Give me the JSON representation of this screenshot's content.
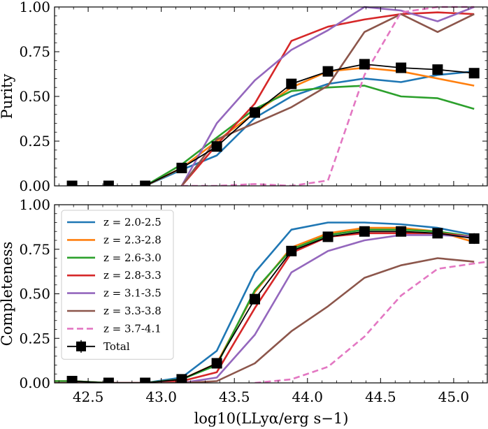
{
  "chart_data": [
    {
      "type": "line",
      "ylabel": "Purity",
      "xlim": [
        42.27,
        45.23
      ],
      "ylim": [
        0,
        1
      ],
      "xticks": [
        "42.5",
        "43.0",
        "43.5",
        "44.0",
        "44.5",
        "45.0"
      ],
      "xtick_values": [
        42.5,
        43.0,
        43.5,
        44.0,
        44.5,
        45.0
      ],
      "yticks": [
        "0.00",
        "0.25",
        "0.50",
        "0.75",
        "1.00"
      ],
      "ytick_values": [
        0,
        0.25,
        0.5,
        0.75,
        1.0
      ],
      "grid": false,
      "series": [
        {
          "color": "#1f77b4",
          "dashed": false,
          "x": [
            42.89,
            43.14,
            43.38,
            43.64,
            43.89,
            44.14,
            44.39,
            44.64,
            44.89,
            45.14
          ],
          "y": [
            0.0,
            0.09,
            0.17,
            0.38,
            0.5,
            0.57,
            0.6,
            0.58,
            0.62,
            0.64
          ]
        },
        {
          "color": "#ff7f0e",
          "dashed": false,
          "x": [
            42.89,
            43.14,
            43.38,
            43.64,
            43.89,
            44.14,
            44.39,
            44.64,
            44.89,
            45.14
          ],
          "y": [
            0.0,
            0.1,
            0.25,
            0.41,
            0.55,
            0.64,
            0.66,
            0.64,
            0.6,
            0.56
          ]
        },
        {
          "color": "#2ca02c",
          "dashed": false,
          "x": [
            42.89,
            43.14,
            43.38,
            43.64,
            43.89,
            44.14,
            44.39,
            44.64,
            44.89,
            45.14
          ],
          "y": [
            0.0,
            0.12,
            0.27,
            0.43,
            0.53,
            0.55,
            0.56,
            0.5,
            0.49,
            0.43
          ]
        },
        {
          "color": "#d62728",
          "dashed": false,
          "x": [
            43.14,
            43.38,
            43.64,
            43.89,
            44.14,
            44.39,
            44.64,
            44.89,
            45.14
          ],
          "y": [
            0.0,
            0.23,
            0.46,
            0.81,
            0.89,
            0.93,
            0.96,
            0.97,
            0.96
          ]
        },
        {
          "color": "#9467bd",
          "dashed": false,
          "x": [
            43.14,
            43.38,
            43.64,
            43.89,
            44.14,
            44.39,
            44.64,
            44.89,
            45.14
          ],
          "y": [
            0.0,
            0.35,
            0.59,
            0.76,
            0.87,
            1.0,
            0.98,
            0.92,
            1.0
          ]
        },
        {
          "color": "#8c564b",
          "dashed": false,
          "x": [
            43.14,
            43.38,
            43.64,
            43.89,
            44.14,
            44.39,
            44.64,
            44.89,
            45.14
          ],
          "y": [
            0.0,
            0.26,
            0.35,
            0.44,
            0.56,
            0.86,
            0.96,
            0.86,
            0.96
          ]
        },
        {
          "color": "#e377c2",
          "dashed": true,
          "x": [
            43.14,
            43.38,
            43.64,
            43.89,
            44.14,
            44.39,
            44.64,
            44.89,
            45.14
          ],
          "y": [
            0.0,
            0.0,
            0.01,
            0.0,
            0.03,
            0.62,
            0.97,
            1.0,
            1.0
          ]
        }
      ],
      "total": {
        "x": [
          42.39,
          42.64,
          42.89,
          43.14,
          43.38,
          43.64,
          43.89,
          44.14,
          44.39,
          44.64,
          44.89,
          45.14
        ],
        "y": [
          0.0,
          0.0,
          0.0,
          0.1,
          0.22,
          0.41,
          0.57,
          0.64,
          0.68,
          0.66,
          0.65,
          0.63
        ]
      }
    },
    {
      "type": "line",
      "ylabel": "Completeness",
      "xlabel": "log10(LLyα/erg s−1)",
      "xlim": [
        42.27,
        45.23
      ],
      "ylim": [
        0,
        1
      ],
      "xticks": [
        "42.5",
        "43.0",
        "43.5",
        "44.0",
        "44.5",
        "45.0"
      ],
      "xtick_values": [
        42.5,
        43.0,
        43.5,
        44.0,
        44.5,
        45.0
      ],
      "yticks": [
        "0.00",
        "0.25",
        "0.50",
        "0.75",
        "1.00"
      ],
      "ytick_values": [
        0,
        0.25,
        0.5,
        0.75,
        1.0
      ],
      "grid": false,
      "legend_position": "top-left",
      "series": [
        {
          "name": "z = 2.0-2.5",
          "color": "#1f77b4",
          "dashed": false,
          "x": [
            42.27,
            42.39,
            42.64,
            42.89,
            43.14,
            43.38,
            43.64,
            43.89,
            44.14,
            44.39,
            44.64,
            44.89,
            45.14
          ],
          "y": [
            0.01,
            0.01,
            0.0,
            0.0,
            0.03,
            0.18,
            0.62,
            0.86,
            0.9,
            0.9,
            0.89,
            0.87,
            0.83
          ]
        },
        {
          "name": "z = 2.3-2.8",
          "color": "#ff7f0e",
          "dashed": false,
          "x": [
            42.27,
            42.39,
            42.64,
            42.89,
            43.14,
            43.38,
            43.64,
            43.89,
            44.14,
            44.39,
            44.64,
            44.89,
            45.14
          ],
          "y": [
            0.01,
            0.01,
            0.0,
            0.0,
            0.02,
            0.11,
            0.51,
            0.76,
            0.84,
            0.87,
            0.87,
            0.85,
            0.79
          ]
        },
        {
          "name": "z = 2.6-3.0",
          "color": "#2ca02c",
          "dashed": false,
          "x": [
            42.27,
            42.39,
            42.64,
            42.89,
            43.14,
            43.38,
            43.64,
            43.89,
            44.14,
            44.39,
            44.64,
            44.89,
            45.14
          ],
          "y": [
            0.01,
            0.01,
            0.0,
            0.0,
            0.02,
            0.1,
            0.52,
            0.75,
            0.83,
            0.86,
            0.86,
            0.85,
            0.82
          ]
        },
        {
          "name": "z = 2.8-3.3",
          "color": "#d62728",
          "dashed": false,
          "x": [
            42.27,
            42.39,
            42.64,
            42.89,
            43.14,
            43.38,
            43.64,
            43.89,
            44.14,
            44.39,
            44.64,
            44.89,
            45.14
          ],
          "y": [
            0.0,
            0.0,
            0.0,
            0.0,
            0.01,
            0.06,
            0.42,
            0.73,
            0.82,
            0.84,
            0.84,
            0.84,
            0.82
          ]
        },
        {
          "name": "z = 3.1-3.5",
          "color": "#9467bd",
          "dashed": false,
          "x": [
            42.27,
            42.39,
            42.64,
            42.89,
            43.14,
            43.38,
            43.64,
            43.89,
            44.14,
            44.39,
            44.64,
            44.89,
            45.14
          ],
          "y": [
            0.0,
            0.0,
            0.0,
            0.0,
            0.0,
            0.03,
            0.27,
            0.62,
            0.74,
            0.8,
            0.83,
            0.83,
            0.82
          ]
        },
        {
          "name": "z = 3.3-3.8",
          "color": "#8c564b",
          "dashed": false,
          "x": [
            42.27,
            42.39,
            42.64,
            42.89,
            43.14,
            43.38,
            43.64,
            43.89,
            44.14,
            44.39,
            44.64,
            44.89,
            45.14
          ],
          "y": [
            0.0,
            0.0,
            0.0,
            0.0,
            0.0,
            0.01,
            0.11,
            0.29,
            0.43,
            0.59,
            0.66,
            0.7,
            0.68
          ]
        },
        {
          "name": "z = 3.7-4.1",
          "color": "#e377c2",
          "dashed": true,
          "x": [
            43.64,
            43.89,
            44.14,
            44.39,
            44.64,
            44.89,
            45.14,
            45.23
          ],
          "y": [
            0.0,
            0.02,
            0.09,
            0.26,
            0.49,
            0.64,
            0.67,
            0.68
          ]
        }
      ],
      "total": {
        "name": "Total",
        "x": [
          42.39,
          42.64,
          42.89,
          43.14,
          43.38,
          43.64,
          43.89,
          44.14,
          44.39,
          44.64,
          44.89,
          45.14
        ],
        "y": [
          0.01,
          0.0,
          0.0,
          0.02,
          0.11,
          0.47,
          0.74,
          0.82,
          0.85,
          0.85,
          0.84,
          0.81
        ],
        "err": [
          0.005,
          0.003,
          0.003,
          0.01,
          0.02,
          0.02,
          0.02,
          0.02,
          0.02,
          0.02,
          0.02,
          0.03
        ]
      }
    }
  ]
}
